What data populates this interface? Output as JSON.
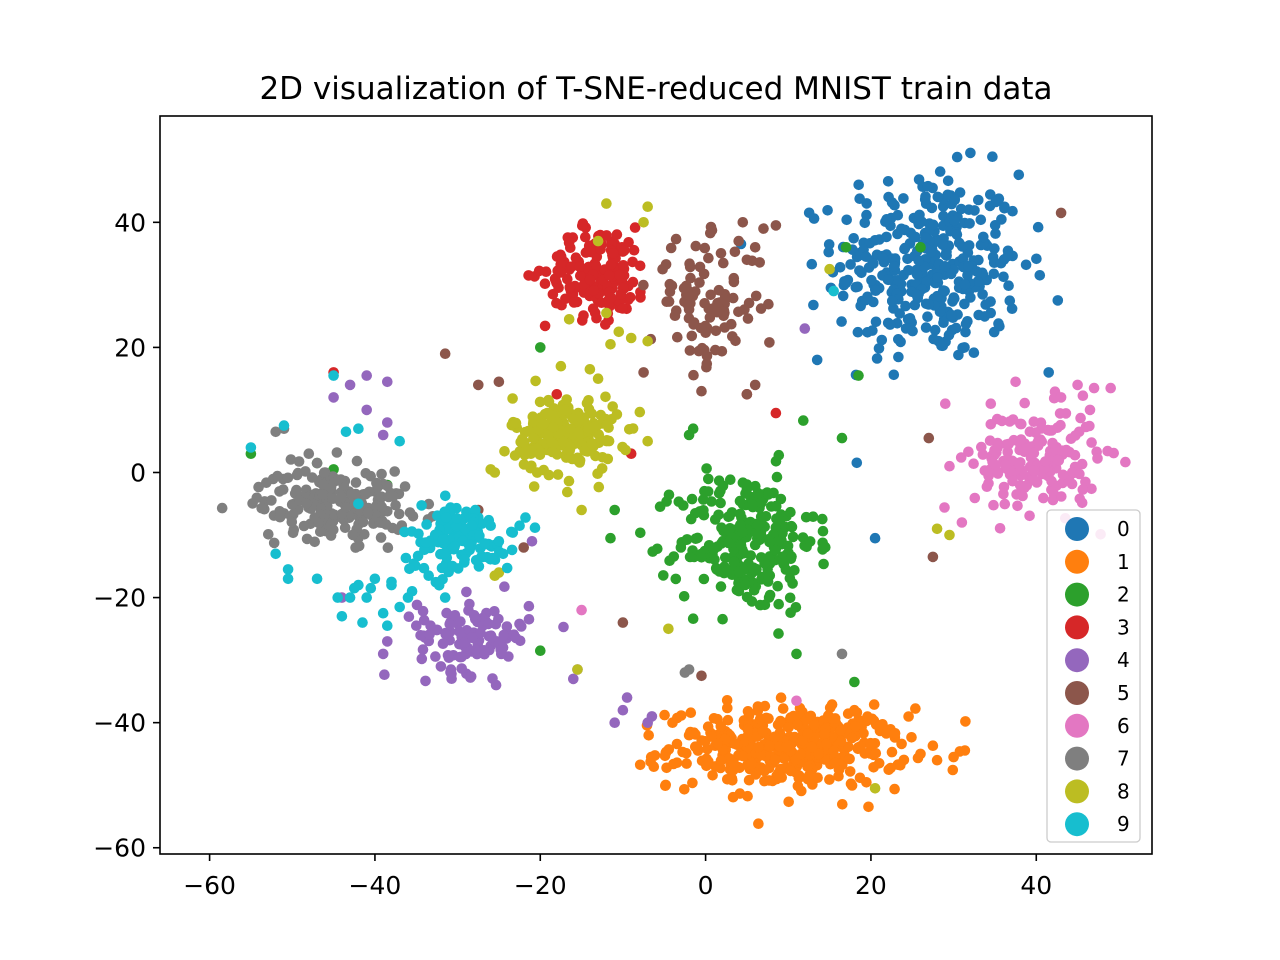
{
  "chart_data": {
    "type": "scatter",
    "title": "2D visualization of T-SNE-reduced MNIST train data",
    "xlabel": "",
    "ylabel": "",
    "xlim": [
      -66,
      54
    ],
    "ylim": [
      -61,
      57
    ],
    "xticks": [
      -60,
      -40,
      -20,
      0,
      20,
      40
    ],
    "yticks": [
      -60,
      -40,
      -20,
      0,
      20,
      40
    ],
    "xtick_labels": [
      "−60",
      "−40",
      "−20",
      "0",
      "20",
      "40"
    ],
    "ytick_labels": [
      "−60",
      "−40",
      "−20",
      "0",
      "20",
      "40"
    ],
    "grid": false,
    "legend_position": "lower-right",
    "series": [
      {
        "name": "0",
        "color": "#1f77b4",
        "cluster": {
          "cx": 27,
          "cy": 33,
          "sx": 7.5,
          "sy": 10,
          "n": 360
        },
        "points": [
          [
            41.5,
            16
          ],
          [
            20.5,
            -10.5
          ],
          [
            13.5,
            18
          ]
        ]
      },
      {
        "name": "1",
        "color": "#ff7f0e",
        "cluster": {
          "cx": 10,
          "cy": -44,
          "sx": 9.5,
          "sy": 4.2,
          "n": 420
        },
        "points": [
          [
            26,
            -45
          ],
          [
            28,
            -46
          ],
          [
            30,
            -45.5
          ],
          [
            -4,
            -40
          ],
          [
            -2,
            -42
          ],
          [
            18,
            -38
          ]
        ]
      },
      {
        "name": "2",
        "color": "#2ca02c",
        "cluster": {
          "cx": 5,
          "cy": -11,
          "sx": 5.5,
          "sy": 7.5,
          "n": 250
        },
        "points": [
          [
            -20,
            20
          ],
          [
            -1.5,
            7
          ],
          [
            -2,
            6
          ],
          [
            16.5,
            5.5
          ],
          [
            18,
            -33.5
          ],
          [
            -20,
            -28.5
          ],
          [
            -11,
            -6
          ],
          [
            -11.5,
            -10.5
          ],
          [
            17,
            36
          ],
          [
            26,
            36
          ],
          [
            11,
            -29
          ],
          [
            -15.5,
            2
          ],
          [
            18.5,
            15.5
          ],
          [
            -38.5,
            -2
          ],
          [
            -45,
            0.5
          ],
          [
            -55,
            3
          ],
          [
            -47,
            1.5
          ]
        ]
      },
      {
        "name": "3",
        "color": "#d62728",
        "cluster": {
          "cx": -13,
          "cy": 32,
          "sx": 4.2,
          "sy": 4.8,
          "n": 170
        },
        "points": [
          [
            -9,
            3
          ],
          [
            5,
            12.5
          ],
          [
            8.5,
            9.5
          ],
          [
            -45,
            16
          ],
          [
            -18,
            12.5
          ]
        ]
      },
      {
        "name": "4",
        "color": "#9467bd",
        "cluster": {
          "cx": -28,
          "cy": -26,
          "sx": 4.5,
          "sy": 4,
          "n": 110
        },
        "points": [
          [
            -43,
            14
          ],
          [
            -41,
            15.5
          ],
          [
            -38.5,
            14.5
          ],
          [
            -45,
            12
          ],
          [
            -41,
            10
          ],
          [
            -38.5,
            8
          ],
          [
            -39,
            6
          ],
          [
            -44,
            -20
          ],
          [
            -38.5,
            -27
          ],
          [
            -39,
            -29
          ],
          [
            -35,
            -24.5
          ],
          [
            -10,
            -38
          ],
          [
            -9.5,
            -36
          ],
          [
            -11,
            -40
          ],
          [
            -7,
            -40
          ],
          [
            -6.5,
            -39
          ],
          [
            12,
            23
          ],
          [
            -15.5,
            -31.5
          ],
          [
            -16,
            -33
          ],
          [
            -21,
            -11
          ]
        ]
      },
      {
        "name": "5",
        "color": "#8c564b",
        "cluster": {
          "cx": 0,
          "cy": 27,
          "sx": 4.5,
          "sy": 6.5,
          "n": 95
        },
        "points": [
          [
            4,
            37
          ],
          [
            6,
            36
          ],
          [
            7,
            39
          ],
          [
            8.5,
            39.5
          ],
          [
            5,
            34
          ],
          [
            4.5,
            40
          ],
          [
            -31.5,
            19
          ],
          [
            -27.5,
            14
          ],
          [
            -25,
            14.5
          ],
          [
            -27.5,
            -6
          ],
          [
            -22,
            -12
          ],
          [
            -7.5,
            16
          ],
          [
            5,
            12.5
          ],
          [
            6,
            14
          ],
          [
            -0.5,
            13
          ],
          [
            27.5,
            -13.5
          ],
          [
            27,
            5.5
          ],
          [
            43,
            41.5
          ],
          [
            -10,
            -24
          ],
          [
            -0.5,
            -32.5
          ]
        ]
      },
      {
        "name": "6",
        "color": "#e377c2",
        "cluster": {
          "cx": 40,
          "cy": 2,
          "sx": 5,
          "sy": 5.5,
          "n": 190
        },
        "points": [
          [
            45,
            14
          ],
          [
            47,
            13.5
          ],
          [
            49,
            13.5
          ],
          [
            43,
            12
          ],
          [
            46.5,
            10
          ],
          [
            34.5,
            11
          ],
          [
            37.5,
            14.5
          ],
          [
            29,
            11
          ],
          [
            29.5,
            1
          ],
          [
            -15,
            -22
          ],
          [
            11,
            -36.5
          ],
          [
            31,
            -8
          ]
        ]
      },
      {
        "name": "7",
        "color": "#7f7f7f",
        "cluster": {
          "cx": -45,
          "cy": -5,
          "sx": 6,
          "sy": 3.8,
          "n": 200
        },
        "points": [
          [
            -52,
            6.5
          ],
          [
            -51,
            7
          ],
          [
            -48,
            3
          ],
          [
            -47,
            1.5
          ],
          [
            -33,
            -7
          ],
          [
            16.5,
            -29
          ],
          [
            -2.5,
            -32
          ],
          [
            -2,
            -31.5
          ]
        ]
      },
      {
        "name": "8",
        "color": "#bcbd22",
        "cluster": {
          "cx": -17,
          "cy": 6,
          "sx": 4.2,
          "sy": 4.2,
          "n": 200
        },
        "points": [
          [
            -12,
            43
          ],
          [
            -7,
            42.5
          ],
          [
            -7.5,
            40
          ],
          [
            -13,
            37
          ],
          [
            -12,
            25.5
          ],
          [
            -10.5,
            22.5
          ],
          [
            -11.5,
            20.5
          ],
          [
            -9,
            21.5
          ],
          [
            -7,
            21
          ],
          [
            -16.5,
            24.5
          ],
          [
            -17.5,
            17
          ],
          [
            -14,
            16.5
          ],
          [
            -13,
            15
          ],
          [
            -7,
            5
          ],
          [
            -15,
            -6
          ],
          [
            -25.5,
            -16.5
          ],
          [
            -25,
            -16
          ],
          [
            -25.5,
            0
          ],
          [
            -4.5,
            -25
          ],
          [
            15,
            32.5
          ],
          [
            20.5,
            -50.5
          ],
          [
            -15.5,
            -31.5
          ],
          [
            28,
            -9
          ],
          [
            29.5,
            -10
          ],
          [
            -26,
            0.5
          ]
        ]
      },
      {
        "name": "9",
        "color": "#17becf",
        "cluster": {
          "cx": -30,
          "cy": -10.5,
          "sx": 4.5,
          "sy": 3.8,
          "n": 130
        },
        "points": [
          [
            -40,
            -17
          ],
          [
            -42,
            -18
          ],
          [
            -38,
            -18
          ],
          [
            -36,
            -20
          ],
          [
            -41,
            -20
          ],
          [
            -44,
            -23
          ],
          [
            -43,
            -20
          ],
          [
            -39,
            -22.5
          ],
          [
            -37,
            -21.5
          ],
          [
            -35.5,
            -19
          ],
          [
            -38,
            -17.5
          ],
          [
            -42.5,
            -18.5
          ],
          [
            -40.5,
            -18.5
          ],
          [
            -33.5,
            -16.5
          ],
          [
            -31.5,
            -20
          ],
          [
            -50.5,
            -15.5
          ],
          [
            -50.5,
            -17
          ],
          [
            -47,
            -17
          ],
          [
            -44.5,
            -20
          ],
          [
            -41.5,
            -24
          ],
          [
            -38.5,
            -24.5
          ],
          [
            -42,
            -5
          ],
          [
            -45,
            15.5
          ],
          [
            -55,
            4
          ],
          [
            -42,
            7
          ],
          [
            -43.5,
            6.5
          ],
          [
            -37,
            5
          ],
          [
            -51,
            7.5
          ],
          [
            -26,
            -8.5
          ],
          [
            -23.5,
            -9.5
          ],
          [
            -25,
            -11
          ],
          [
            -22.5,
            -8.5
          ],
          [
            -24.5,
            -13
          ],
          [
            15.5,
            29
          ],
          [
            -52,
            -13
          ]
        ]
      }
    ]
  }
}
